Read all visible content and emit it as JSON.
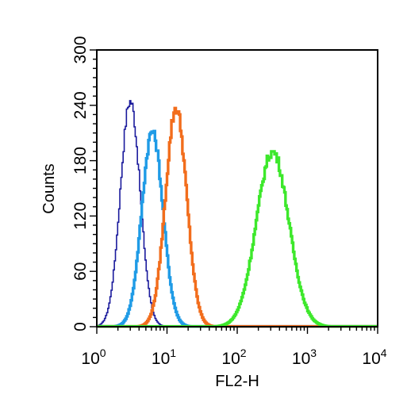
{
  "chart_data": {
    "type": "line",
    "xlabel": "FL2-H",
    "ylabel": "Counts",
    "x_scale": "log",
    "xlim": [
      1,
      10000
    ],
    "ylim": [
      0,
      300
    ],
    "x_ticks": [
      {
        "base": "10",
        "exp": "0",
        "value": 1
      },
      {
        "base": "10",
        "exp": "1",
        "value": 10
      },
      {
        "base": "10",
        "exp": "2",
        "value": 100
      },
      {
        "base": "10",
        "exp": "3",
        "value": 1000
      },
      {
        "base": "10",
        "exp": "4",
        "value": 10000
      }
    ],
    "y_ticks": [
      "0",
      "60",
      "120",
      "180",
      "240",
      "300"
    ],
    "grid": false,
    "series": [
      {
        "color": "#1a1a9c",
        "stroke": "thin",
        "peak_x": 3.0,
        "peak_y": 245,
        "width_decades": 0.14
      },
      {
        "color": "#1f9be6",
        "stroke": "thick",
        "peak_x": 6.2,
        "peak_y": 212,
        "width_decades": 0.15
      },
      {
        "color": "#f26d1c",
        "stroke": "thick",
        "peak_x": 13.5,
        "peak_y": 237,
        "width_decades": 0.15
      },
      {
        "color": "#3de82b",
        "stroke": "thick",
        "peak_x": 320,
        "peak_y": 190,
        "width_decades": 0.23
      }
    ]
  }
}
